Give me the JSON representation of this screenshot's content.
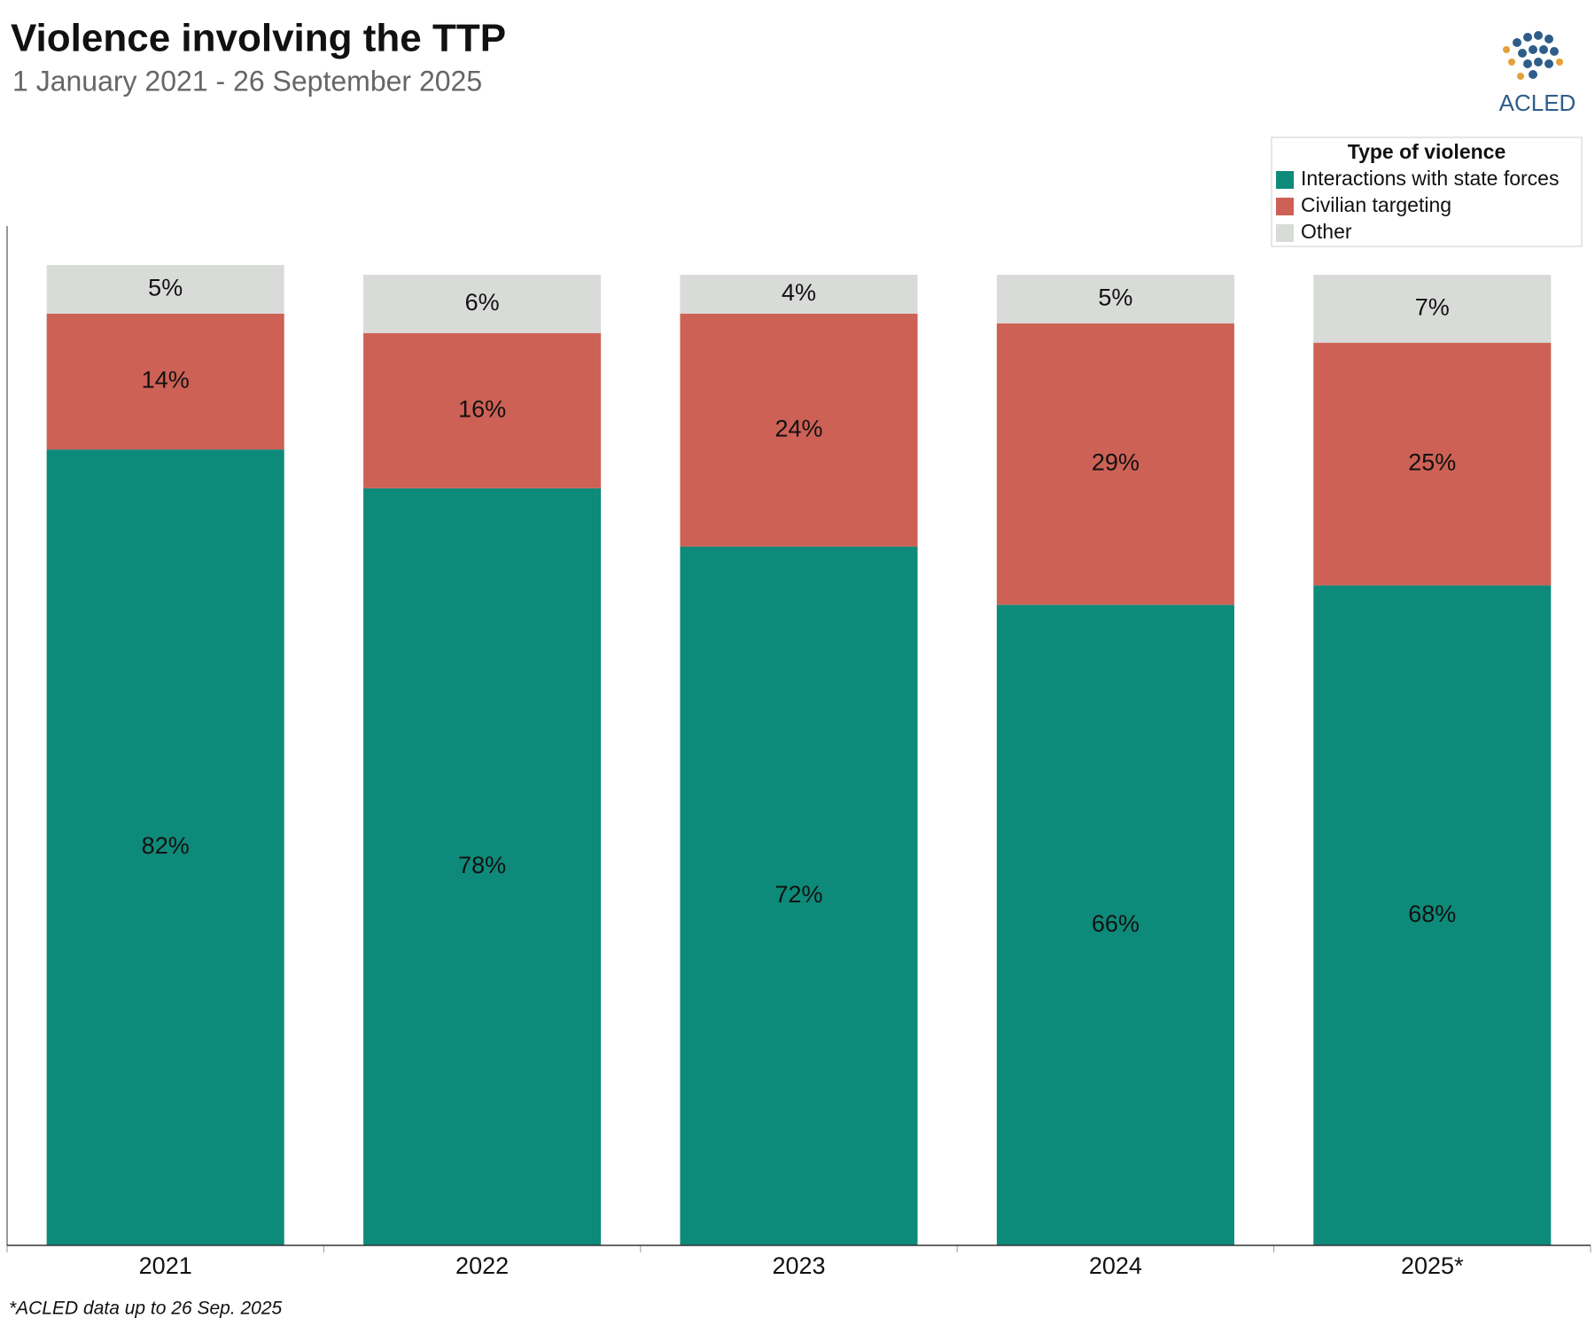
{
  "chart_data": {
    "type": "stacked_bar",
    "title": "Violence involving the TTP",
    "subtitle": "1 January 2021 - 26 September 2025",
    "legend_title": "Type of violence",
    "legend_position": "top-right",
    "logo": "ACLED",
    "footnote": "*ACLED data up to 26 Sep. 2025",
    "categories": [
      "2021",
      "2022",
      "2023",
      "2024",
      "2025*"
    ],
    "ylim": [
      0,
      100
    ],
    "series": [
      {
        "name": "Interactions with state forces",
        "color": "#0e8a7a",
        "values": [
          82,
          78,
          72,
          66,
          68
        ],
        "value_labels": [
          "82%",
          "78%",
          "72%",
          "66%",
          "68%"
        ]
      },
      {
        "name": "Civilian targeting",
        "color": "#cd6155",
        "values": [
          14,
          16,
          24,
          29,
          25
        ],
        "value_labels": [
          "14%",
          "16%",
          "24%",
          "29%",
          "25%"
        ]
      },
      {
        "name": "Other",
        "color": "#d9dbd9",
        "values": [
          5,
          6,
          4,
          5,
          7
        ],
        "value_labels": [
          "5%",
          "6%",
          "4%",
          "5%",
          "7%"
        ]
      }
    ]
  }
}
